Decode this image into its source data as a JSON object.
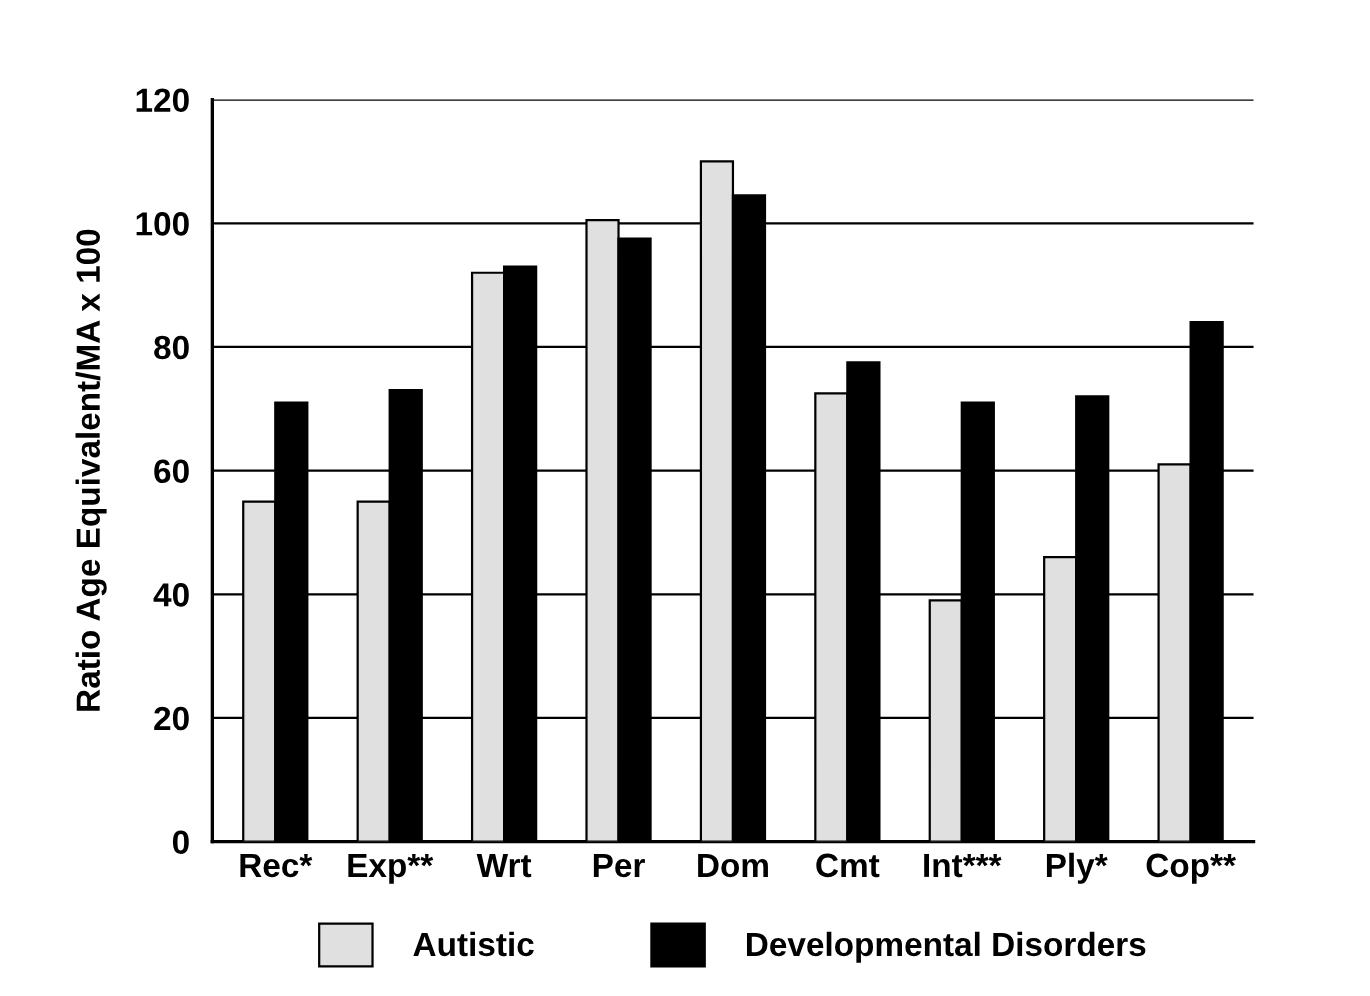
{
  "chart_data": {
    "type": "bar",
    "ylabel": "Ratio Age Equivalent/MA x 100",
    "categories": [
      "Rec*",
      "Exp**",
      "Wrt",
      "Per",
      "Dom",
      "Cmt",
      "Int***",
      "Ply*",
      "Cop**"
    ],
    "series": [
      {
        "name": "Autistic",
        "color": "#e0e0e0",
        "values": [
          55,
          55,
          92,
          100.5,
          110,
          72.5,
          39,
          46,
          61
        ]
      },
      {
        "name": "Developmental Disorders",
        "color": "#000000",
        "values": [
          71,
          73,
          93,
          97.5,
          104.5,
          77.5,
          71,
          72,
          84
        ]
      }
    ],
    "ylim": [
      0,
      120
    ],
    "yticks": [
      0,
      20,
      40,
      60,
      80,
      100,
      120
    ],
    "grid": "y",
    "legend": "bottom"
  }
}
